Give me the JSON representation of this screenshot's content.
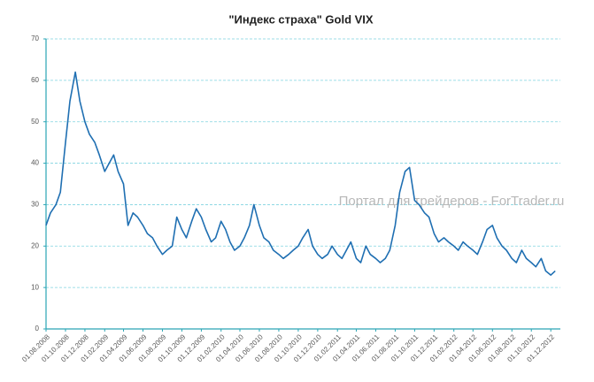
{
  "chart_data": {
    "type": "line",
    "title": "\"Индекс страха\" Gold VIX",
    "watermark": "Портал для трейдеров - ForTrader.ru",
    "x": [
      "01.08.2008",
      "15.08.2008",
      "01.09.2008",
      "15.09.2008",
      "01.10.2008",
      "15.10.2008",
      "01.11.2008",
      "15.11.2008",
      "01.12.2008",
      "15.12.2008",
      "01.01.2009",
      "15.01.2009",
      "01.02.2009",
      "15.02.2009",
      "01.03.2009",
      "15.03.2009",
      "01.04.2009",
      "15.04.2009",
      "01.05.2009",
      "15.05.2009",
      "01.06.2009",
      "15.06.2009",
      "01.07.2009",
      "15.07.2009",
      "01.08.2009",
      "15.08.2009",
      "01.09.2009",
      "15.09.2009",
      "01.10.2009",
      "15.10.2009",
      "01.11.2009",
      "15.11.2009",
      "01.12.2009",
      "15.12.2009",
      "01.01.2010",
      "15.01.2010",
      "01.02.2010",
      "15.02.2010",
      "01.03.2010",
      "15.03.2010",
      "01.04.2010",
      "15.04.2010",
      "01.05.2010",
      "15.05.2010",
      "01.06.2010",
      "15.06.2010",
      "01.07.2010",
      "15.07.2010",
      "01.08.2010",
      "15.08.2010",
      "01.09.2010",
      "15.09.2010",
      "01.10.2010",
      "15.10.2010",
      "01.11.2010",
      "15.11.2010",
      "01.12.2010",
      "15.12.2010",
      "01.01.2011",
      "15.01.2011",
      "01.02.2011",
      "15.02.2011",
      "01.03.2011",
      "15.03.2011",
      "01.04.2011",
      "15.04.2011",
      "01.05.2011",
      "15.05.2011",
      "01.06.2011",
      "15.06.2011",
      "01.07.2011",
      "15.07.2011",
      "01.08.2011",
      "15.08.2011",
      "01.09.2011",
      "15.09.2011",
      "01.10.2011",
      "15.10.2011",
      "01.11.2011",
      "15.11.2011",
      "01.12.2011",
      "15.12.2011",
      "01.01.2012",
      "15.01.2012",
      "01.02.2012",
      "15.02.2012",
      "01.03.2012",
      "15.03.2012",
      "01.04.2012",
      "15.04.2012",
      "01.05.2012",
      "15.05.2012",
      "01.06.2012",
      "15.06.2012",
      "01.07.2012",
      "15.07.2012",
      "01.08.2012",
      "15.08.2012",
      "01.09.2012",
      "15.09.2012",
      "01.10.2012",
      "15.10.2012",
      "01.11.2012",
      "15.11.2012",
      "01.12.2012",
      "15.12.2012"
    ],
    "series": [
      {
        "name": "Gold VIX",
        "color": "#1f6fb2",
        "values": [
          25,
          28,
          30,
          33,
          45,
          55,
          62,
          55,
          50,
          47,
          45,
          42,
          38,
          40,
          42,
          38,
          35,
          25,
          28,
          27,
          25,
          23,
          22,
          20,
          18,
          19,
          20,
          27,
          24,
          22,
          26,
          29,
          27,
          24,
          21,
          22,
          26,
          24,
          21,
          19,
          20,
          22,
          25,
          30,
          25,
          22,
          21,
          19,
          18,
          17,
          18,
          19,
          20,
          22,
          24,
          20,
          18,
          17,
          18,
          20,
          18,
          17,
          19,
          21,
          17,
          16,
          20,
          18,
          17,
          16,
          17,
          19,
          25,
          33,
          38,
          39,
          31,
          30,
          28,
          27,
          23,
          21,
          22,
          21,
          20,
          19,
          21,
          20,
          19,
          18,
          21,
          24,
          25,
          22,
          20,
          19,
          17,
          16,
          19,
          17,
          16,
          15,
          17,
          14,
          13,
          14
        ]
      }
    ],
    "xlim": [
      "01.08.2008",
      "31.12.2012"
    ],
    "xticks": [
      "01.08.2008",
      "01.10.2008",
      "01.12.2008",
      "01.02.2009",
      "01.04.2009",
      "01.06.2009",
      "01.08.2009",
      "01.10.2009",
      "01.12.2009",
      "01.02.2010",
      "01.04.2010",
      "01.06.2010",
      "01.08.2010",
      "01.10.2010",
      "01.12.2010",
      "01.02.2011",
      "01.04.2011",
      "01.06.2011",
      "01.08.2011",
      "01.10.2011",
      "01.12.2011",
      "01.02.2012",
      "01.04.2012",
      "01.06.2012",
      "01.08.2012",
      "01.10.2012",
      "01.12.2012"
    ],
    "ylim": [
      0,
      70
    ],
    "yticks": [
      0,
      10,
      20,
      30,
      40,
      50,
      60,
      70
    ],
    "grid": true,
    "grid_color": "#7fd3e0",
    "axis_color": "#2aa5b5"
  }
}
